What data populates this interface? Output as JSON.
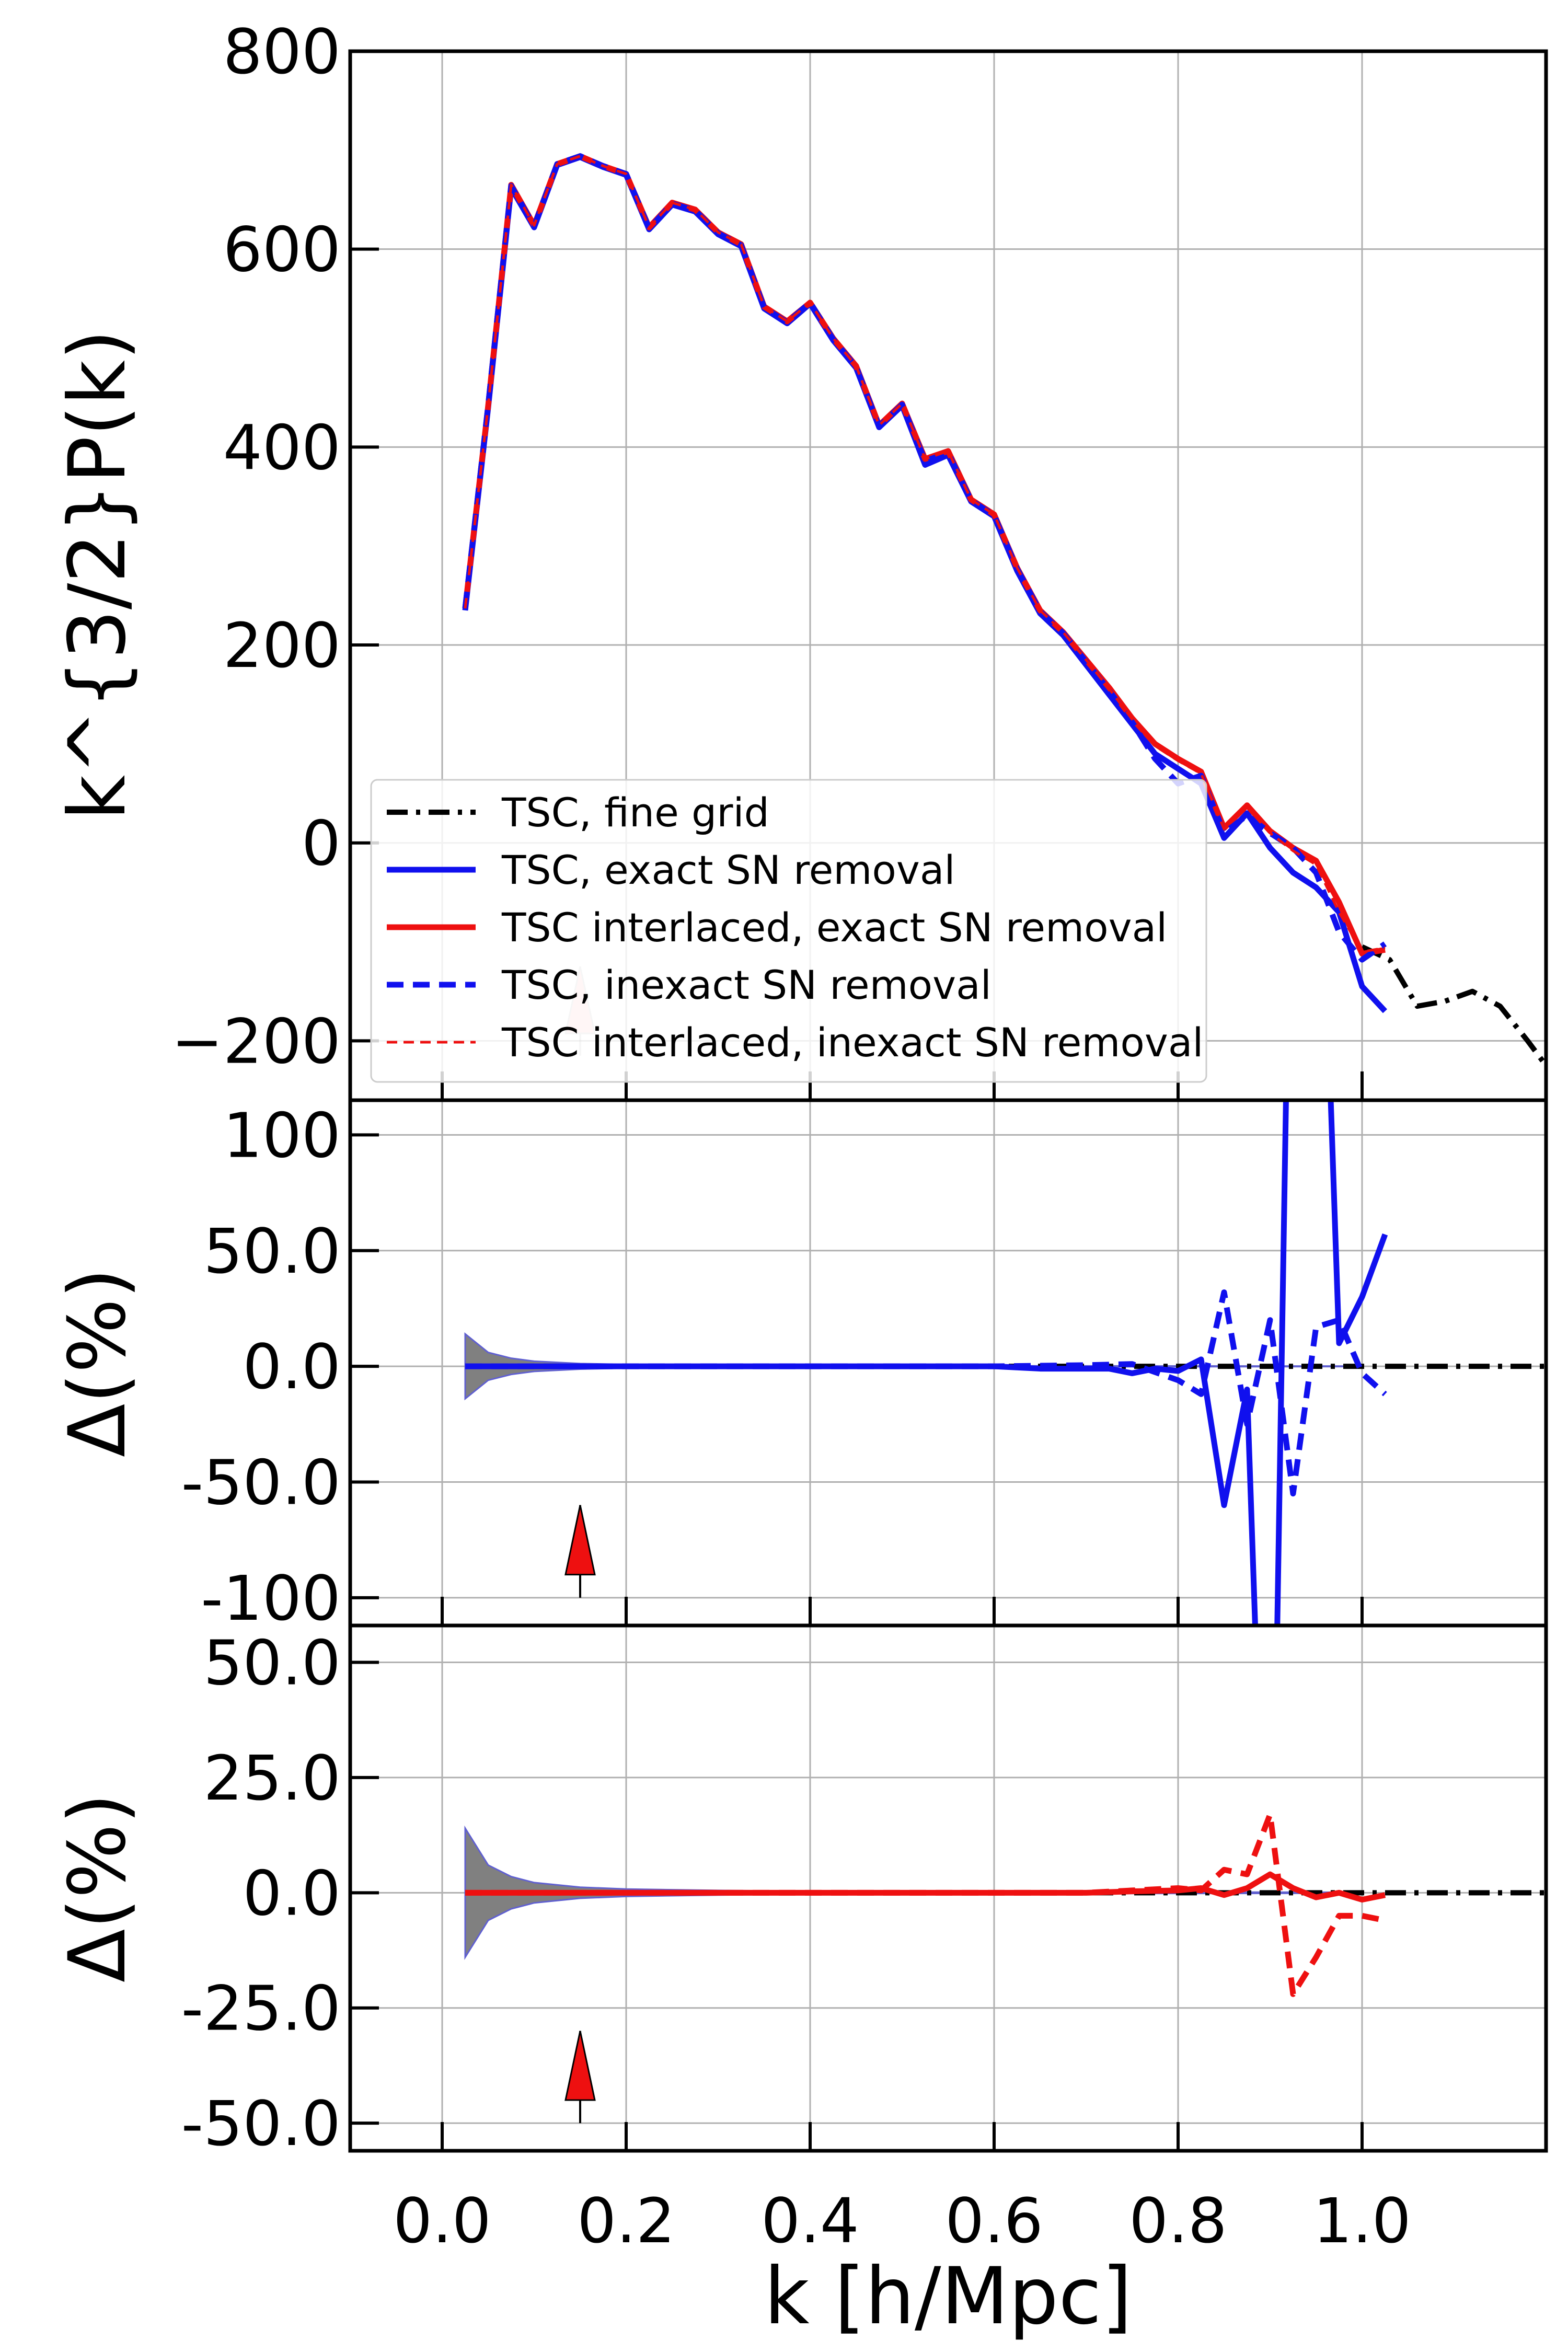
{
  "chart_data": [
    {
      "type": "line",
      "panel": "top",
      "xlim": [
        -0.1,
        1.2
      ],
      "ylim": [
        -260,
        800
      ],
      "ylabel": "k^{3/2}P(k)",
      "y_ticks": [
        -200,
        0,
        200,
        400,
        600,
        800
      ],
      "y_tick_labels": [
        "−200",
        "0",
        "200",
        "400",
        "600",
        "800"
      ],
      "grid": true,
      "legend_placement": "lower-left",
      "colors": {
        "black": "#000000",
        "blue": "#1010ee",
        "red": "#ee1010"
      },
      "series": [
        {
          "name": "TSC, fine grid",
          "style": "dashdot",
          "color": "black",
          "x": [
            1.0,
            1.03,
            1.06,
            1.09,
            1.12,
            1.15,
            1.18,
            1.2
          ],
          "y": [
            -105,
            -118,
            -165,
            -160,
            -150,
            -165,
            -200,
            -225
          ]
        },
        {
          "name": "TSC, exact SN removal",
          "style": "solid",
          "color": "blue",
          "x": [
            0.025,
            0.05,
            0.075,
            0.1,
            0.125,
            0.15,
            0.175,
            0.2,
            0.225,
            0.25,
            0.275,
            0.3,
            0.325,
            0.35,
            0.375,
            0.4,
            0.425,
            0.45,
            0.475,
            0.5,
            0.525,
            0.55,
            0.575,
            0.6,
            0.625,
            0.65,
            0.675,
            0.7,
            0.725,
            0.75,
            0.775,
            0.8,
            0.825,
            0.85,
            0.875,
            0.9,
            0.925,
            0.95,
            0.975,
            1.0,
            1.025
          ],
          "y": [
            235,
            440,
            662,
            622,
            685,
            693,
            683,
            675,
            620,
            645,
            638,
            615,
            603,
            540,
            525,
            545,
            508,
            480,
            420,
            442,
            382,
            392,
            345,
            330,
            275,
            232,
            210,
            180,
            150,
            120,
            90,
            75,
            60,
            5,
            30,
            -5,
            -30,
            -45,
            -70,
            -145,
            -170
          ]
        },
        {
          "name": "TSC interlaced, exact SN removal",
          "style": "solid",
          "color": "red",
          "x": [
            0.025,
            0.05,
            0.075,
            0.1,
            0.125,
            0.15,
            0.175,
            0.2,
            0.225,
            0.25,
            0.275,
            0.3,
            0.325,
            0.35,
            0.375,
            0.4,
            0.425,
            0.45,
            0.475,
            0.5,
            0.525,
            0.55,
            0.575,
            0.6,
            0.625,
            0.65,
            0.675,
            0.7,
            0.725,
            0.75,
            0.775,
            0.8,
            0.825,
            0.85,
            0.875,
            0.9,
            0.925,
            0.95,
            0.975,
            1.0,
            1.025
          ],
          "y": [
            237,
            442,
            665,
            624,
            686,
            694,
            684,
            676,
            622,
            647,
            640,
            617,
            605,
            542,
            527,
            546,
            510,
            482,
            422,
            444,
            388,
            396,
            347,
            332,
            278,
            235,
            213,
            185,
            157,
            126,
            100,
            85,
            72,
            15,
            38,
            12,
            -5,
            -18,
            -60,
            -112,
            -108
          ]
        },
        {
          "name": "TSC, inexact SN removal",
          "style": "dashed",
          "color": "blue",
          "x": [
            0.025,
            0.05,
            0.075,
            0.1,
            0.125,
            0.15,
            0.175,
            0.2,
            0.225,
            0.25,
            0.275,
            0.3,
            0.325,
            0.35,
            0.375,
            0.4,
            0.425,
            0.45,
            0.475,
            0.5,
            0.525,
            0.55,
            0.575,
            0.6,
            0.625,
            0.65,
            0.675,
            0.7,
            0.725,
            0.75,
            0.775,
            0.8,
            0.825,
            0.85,
            0.875,
            0.9,
            0.925,
            0.95,
            0.975,
            1.0,
            1.025
          ],
          "y": [
            237,
            442,
            664,
            623,
            686,
            694,
            684,
            676,
            621,
            646,
            639,
            616,
            604,
            541,
            526,
            546,
            509,
            481,
            421,
            443,
            386,
            394,
            346,
            331,
            277,
            234,
            212,
            183,
            154,
            122,
            85,
            60,
            68,
            10,
            28,
            10,
            -5,
            -30,
            -90,
            -118,
            -102
          ]
        },
        {
          "name": "TSC interlaced, inexact SN removal",
          "style": "dashed-thin",
          "color": "red",
          "x": [
            0.025,
            0.05,
            0.075,
            0.1,
            0.125,
            0.15,
            0.175,
            0.2,
            0.225,
            0.25,
            0.275,
            0.3,
            0.325,
            0.35,
            0.375,
            0.4,
            0.425,
            0.45,
            0.475,
            0.5,
            0.525,
            0.55,
            0.575,
            0.6,
            0.625,
            0.65,
            0.675,
            0.7,
            0.725,
            0.75,
            0.775,
            0.8,
            0.825,
            0.85,
            0.875,
            0.9,
            0.925,
            0.95,
            0.975,
            1.0,
            1.025
          ],
          "y": [
            237,
            442,
            665,
            624,
            686,
            694,
            684,
            676,
            622,
            647,
            640,
            617,
            605,
            542,
            527,
            546,
            510,
            482,
            422,
            444,
            388,
            396,
            347,
            332,
            278,
            235,
            213,
            185,
            156,
            125,
            98,
            83,
            70,
            14,
            36,
            10,
            -8,
            -22,
            -70,
            -110,
            -106
          ]
        }
      ],
      "annotations": [
        {
          "type": "arrow",
          "x": 0.15,
          "y_from": -215,
          "y_to": -125,
          "color": "#ee1010",
          "alpha": 0.2
        }
      ]
    },
    {
      "type": "line",
      "panel": "middle",
      "xlim": [
        -0.1,
        1.2
      ],
      "ylim": [
        -112,
        115
      ],
      "ylabel": "Δ(%)",
      "y_ticks": [
        -100,
        -50,
        0,
        50,
        100
      ],
      "y_tick_labels": [
        "-100",
        "-50.0",
        "0.0",
        "50.0",
        "100"
      ],
      "grid": true,
      "band": {
        "x": [
          0.025,
          0.05,
          0.075,
          0.1,
          0.15,
          0.2,
          0.3,
          0.4,
          0.6,
          0.8,
          1.0
        ],
        "half_width": [
          14,
          6,
          3.5,
          2.2,
          1.2,
          0.8,
          0.5,
          0.3,
          0.2,
          0.15,
          0.1
        ],
        "fill": "#808080",
        "edge": "#6060d0"
      },
      "series": [
        {
          "style": "dashdot",
          "color": "black",
          "x": [
            0.025,
            1.2
          ],
          "y": [
            0,
            0
          ]
        },
        {
          "style": "solid",
          "color": "blue",
          "x": [
            0.025,
            0.1,
            0.2,
            0.3,
            0.4,
            0.5,
            0.6,
            0.65,
            0.7,
            0.725,
            0.75,
            0.775,
            0.8,
            0.825,
            0.85,
            0.875,
            0.9,
            0.925,
            0.95,
            0.975,
            1.0,
            1.025
          ],
          "y": [
            0,
            0,
            0,
            0,
            0,
            0,
            0,
            -1,
            -1,
            -1,
            -3,
            -1,
            -2,
            3,
            -60,
            -10,
            -300,
            300,
            300,
            10,
            30,
            57
          ]
        },
        {
          "style": "dashed",
          "color": "blue",
          "x": [
            0.025,
            0.1,
            0.2,
            0.3,
            0.4,
            0.5,
            0.6,
            0.7,
            0.75,
            0.8,
            0.825,
            0.85,
            0.875,
            0.9,
            0.925,
            0.95,
            0.975,
            1.0,
            1.025
          ],
          "y": [
            0,
            0,
            0,
            0,
            0,
            0,
            0,
            0.5,
            1,
            -6,
            -12,
            32,
            -25,
            20,
            -55,
            17,
            20,
            -3,
            -12
          ]
        }
      ],
      "annotations": [
        {
          "type": "arrow",
          "x": 0.15,
          "y_from": -100,
          "y_to": -60,
          "color": "#ee1010"
        }
      ]
    },
    {
      "type": "line",
      "panel": "bottom",
      "xlim": [
        -0.1,
        1.2
      ],
      "ylim": [
        -56,
        58
      ],
      "xlabel": "k [h/Mpc]",
      "ylabel": "Δ(%)",
      "x_ticks": [
        0.0,
        0.2,
        0.4,
        0.6,
        0.8,
        1.0
      ],
      "x_tick_labels": [
        "0.0",
        "0.2",
        "0.4",
        "0.6",
        "0.8",
        "1.0"
      ],
      "y_ticks": [
        -50,
        -25,
        0,
        25,
        50
      ],
      "y_tick_labels": [
        "-50.0",
        "-25.0",
        "0.0",
        "25.0",
        "50.0"
      ],
      "grid": true,
      "band": {
        "x": [
          0.025,
          0.05,
          0.075,
          0.1,
          0.15,
          0.2,
          0.3,
          0.4,
          0.6,
          0.8,
          1.0
        ],
        "half_width": [
          14,
          6,
          3.5,
          2.2,
          1.2,
          0.8,
          0.5,
          0.3,
          0.2,
          0.15,
          0.1
        ],
        "fill": "#808080",
        "edge": "#6060d0"
      },
      "series": [
        {
          "style": "dashdot",
          "color": "black",
          "x": [
            0.025,
            1.2
          ],
          "y": [
            0,
            0
          ]
        },
        {
          "style": "solid",
          "color": "red",
          "x": [
            0.025,
            0.1,
            0.2,
            0.3,
            0.4,
            0.5,
            0.6,
            0.7,
            0.75,
            0.8,
            0.825,
            0.85,
            0.875,
            0.9,
            0.925,
            0.95,
            0.975,
            1.0,
            1.025
          ],
          "y": [
            0,
            0,
            0,
            0,
            0,
            0,
            0,
            0,
            0.3,
            0.5,
            1,
            -0.5,
            1,
            4,
            1,
            -1,
            0,
            -1.5,
            -0.5
          ]
        },
        {
          "style": "dashed",
          "color": "red",
          "x": [
            0.025,
            0.1,
            0.2,
            0.3,
            0.4,
            0.5,
            0.6,
            0.7,
            0.75,
            0.8,
            0.825,
            0.85,
            0.875,
            0.9,
            0.925,
            0.95,
            0.975,
            1.0,
            1.025
          ],
          "y": [
            0,
            0,
            0,
            0,
            0,
            0,
            0,
            0,
            0.5,
            1,
            0.5,
            5,
            4,
            17,
            -22,
            -14,
            -5,
            -5,
            -6
          ]
        }
      ],
      "annotations": [
        {
          "type": "arrow",
          "x": 0.15,
          "y_from": -50,
          "y_to": -30,
          "color": "#ee1010"
        }
      ]
    }
  ]
}
